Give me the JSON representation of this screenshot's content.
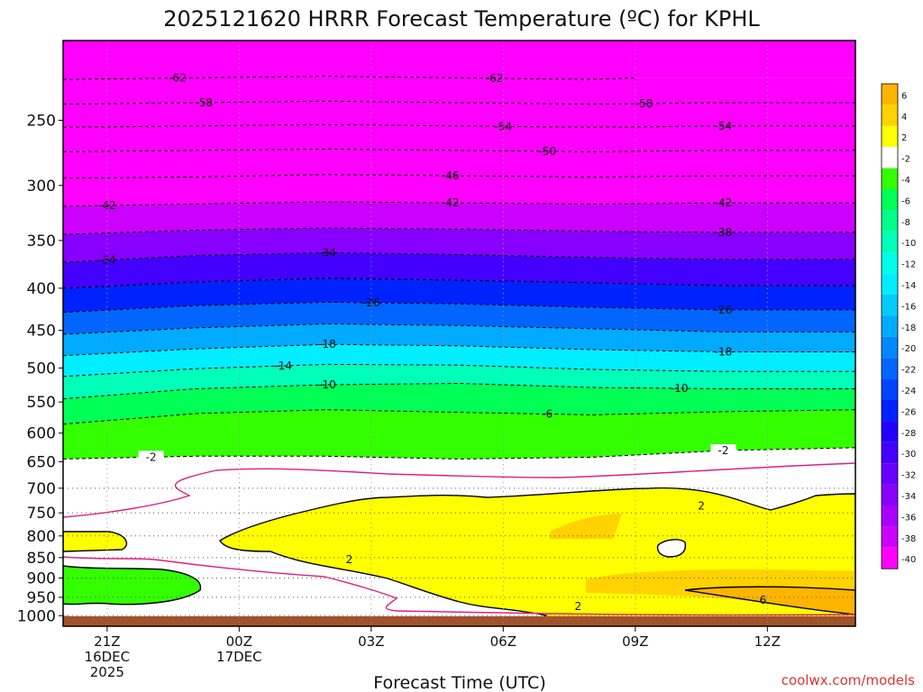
{
  "chart_data": {
    "type": "contour",
    "title": "2025121620 HRRR Forecast Temperature (ºC) for KPHL",
    "xlabel": "Forecast Time (UTC)",
    "ylabel": "",
    "credit": "coolwx.com/models",
    "x_ticks": [
      {
        "hour": 1,
        "lines": [
          "21Z",
          "16DEC",
          "2025"
        ]
      },
      {
        "hour": 4,
        "lines": [
          "00Z",
          "17DEC"
        ]
      },
      {
        "hour": 7,
        "lines": [
          "03Z"
        ]
      },
      {
        "hour": 10,
        "lines": [
          "06Z"
        ]
      },
      {
        "hour": 13,
        "lines": [
          "09Z"
        ]
      },
      {
        "hour": 16,
        "lines": [
          "12Z"
        ]
      }
    ],
    "x_range_hours": [
      0,
      18
    ],
    "y_axis": {
      "scale": "log",
      "range_hPa": [
        1030,
        200
      ],
      "inverted": true
    },
    "y_ticks": [
      250,
      300,
      350,
      400,
      450,
      500,
      550,
      600,
      650,
      700,
      750,
      800,
      850,
      900,
      950,
      1000
    ],
    "colorbar": {
      "ticks": [
        "6",
        "4",
        "2",
        "-2",
        "-4",
        "-6",
        "-8",
        "-10",
        "-12",
        "-14",
        "-16",
        "-18",
        "-20",
        "-22",
        "-24",
        "-26",
        "-28",
        "-30",
        "-32",
        "-34",
        "-36",
        "-38",
        "-40"
      ],
      "colors": [
        "#ffb400",
        "#ffd200",
        "#ffff00",
        "#ffffff",
        "#33ff00",
        "#00ff55",
        "#00ff88",
        "#00ffb8",
        "#00ffe8",
        "#00eeff",
        "#00ccff",
        "#00aaff",
        "#0088ff",
        "#0066ff",
        "#0044ff",
        "#0022ff",
        "#2200ff",
        "#4400ff",
        "#6600ff",
        "#8800ff",
        "#aa00ff",
        "#cc00ff",
        "#ff00ff"
      ]
    },
    "contour_lines": [
      {
        "value": -62,
        "labels": [
          "-62",
          "-62"
        ],
        "points": [
          [
            0,
            223
          ],
          [
            3,
            222
          ],
          [
            6,
            221
          ],
          [
            9,
            222
          ],
          [
            12,
            223
          ],
          [
            13,
            222
          ]
        ]
      },
      {
        "value": -58,
        "labels": [
          "-58",
          "-58"
        ],
        "points": [
          [
            0,
            239
          ],
          [
            3,
            238
          ],
          [
            6,
            237
          ],
          [
            9,
            238
          ],
          [
            12,
            239
          ],
          [
            15,
            238
          ],
          [
            18,
            238
          ]
        ]
      },
      {
        "value": -54,
        "labels": [
          "-54",
          "-54"
        ],
        "points": [
          [
            0,
            255
          ],
          [
            3,
            254
          ],
          [
            6,
            253
          ],
          [
            9,
            254
          ],
          [
            12,
            255
          ],
          [
            15,
            254
          ],
          [
            18,
            254
          ]
        ]
      },
      {
        "value": -50,
        "labels": [
          "-50"
        ],
        "points": [
          [
            0,
            273
          ],
          [
            3,
            272
          ],
          [
            6,
            271
          ],
          [
            9,
            272
          ],
          [
            12,
            273
          ],
          [
            15,
            272
          ],
          [
            18,
            272
          ]
        ]
      },
      {
        "value": -46,
        "labels": [
          "-46"
        ],
        "points": [
          [
            0,
            294
          ],
          [
            3,
            293
          ],
          [
            6,
            291
          ],
          [
            9,
            292
          ],
          [
            12,
            293
          ],
          [
            15,
            292
          ],
          [
            18,
            292
          ]
        ]
      },
      {
        "value": -42,
        "labels": [
          "-42",
          "-42",
          "-42"
        ],
        "points": [
          [
            0,
            318
          ],
          [
            3,
            316
          ],
          [
            6,
            314
          ],
          [
            9,
            315
          ],
          [
            12,
            316
          ],
          [
            15,
            315
          ],
          [
            18,
            315
          ]
        ]
      },
      {
        "value": -38,
        "labels": [
          "-38"
        ],
        "points": [
          [
            0,
            344
          ],
          [
            3,
            340
          ],
          [
            6,
            338
          ],
          [
            9,
            339
          ],
          [
            12,
            341
          ],
          [
            15,
            342
          ],
          [
            18,
            342
          ]
        ]
      },
      {
        "value": -34,
        "labels": [
          "-34",
          "-34"
        ],
        "points": [
          [
            0,
            372
          ],
          [
            3,
            365
          ],
          [
            6,
            362
          ],
          [
            9,
            364
          ],
          [
            12,
            367
          ],
          [
            15,
            369
          ],
          [
            18,
            369
          ]
        ]
      },
      {
        "value": -30,
        "labels": [],
        "points": [
          [
            0,
            400
          ],
          [
            3,
            393
          ],
          [
            6,
            389
          ],
          [
            9,
            391
          ],
          [
            12,
            394
          ],
          [
            15,
            397
          ],
          [
            18,
            397
          ]
        ]
      },
      {
        "value": -26,
        "labels": [
          "-26",
          "-26"
        ],
        "points": [
          [
            0,
            428
          ],
          [
            3,
            420
          ],
          [
            6,
            416
          ],
          [
            9,
            418
          ],
          [
            12,
            422
          ],
          [
            15,
            425
          ],
          [
            18,
            425
          ]
        ]
      },
      {
        "value": -22,
        "labels": [],
        "points": [
          [
            0,
            455
          ],
          [
            3,
            447
          ],
          [
            6,
            442
          ],
          [
            9,
            444
          ],
          [
            12,
            448
          ],
          [
            15,
            452
          ],
          [
            18,
            452
          ]
        ]
      },
      {
        "value": -18,
        "labels": [
          "-18",
          "-18"
        ],
        "points": [
          [
            0,
            483
          ],
          [
            3,
            474
          ],
          [
            6,
            468
          ],
          [
            9,
            470
          ],
          [
            12,
            475
          ],
          [
            15,
            478
          ],
          [
            18,
            478
          ]
        ]
      },
      {
        "value": -14,
        "labels": [
          "-14"
        ],
        "points": [
          [
            0,
            512
          ],
          [
            3,
            501
          ],
          [
            6,
            495
          ],
          [
            9,
            496
          ],
          [
            12,
            502
          ],
          [
            15,
            505
          ],
          [
            18,
            505
          ]
        ]
      },
      {
        "value": -10,
        "labels": [
          "-10",
          "-10"
        ],
        "points": [
          [
            0,
            545
          ],
          [
            3,
            530
          ],
          [
            6,
            524
          ],
          [
            9,
            522
          ],
          [
            12,
            528
          ],
          [
            15,
            530
          ],
          [
            18,
            530
          ]
        ]
      },
      {
        "value": -6,
        "labels": [
          "-6"
        ],
        "points": [
          [
            0,
            585
          ],
          [
            3,
            568
          ],
          [
            6,
            562
          ],
          [
            9,
            566
          ],
          [
            12,
            570
          ],
          [
            15,
            565
          ],
          [
            18,
            562
          ]
        ]
      },
      {
        "value": -2,
        "labels": [
          "-2",
          "-2"
        ],
        "points": [
          [
            0,
            645
          ],
          [
            3,
            640
          ],
          [
            6,
            640
          ],
          [
            9,
            645
          ],
          [
            12,
            642
          ],
          [
            15,
            630
          ],
          [
            18,
            625
          ]
        ]
      }
    ],
    "annotations": [
      "2",
      "2",
      "2",
      "6"
    ]
  }
}
